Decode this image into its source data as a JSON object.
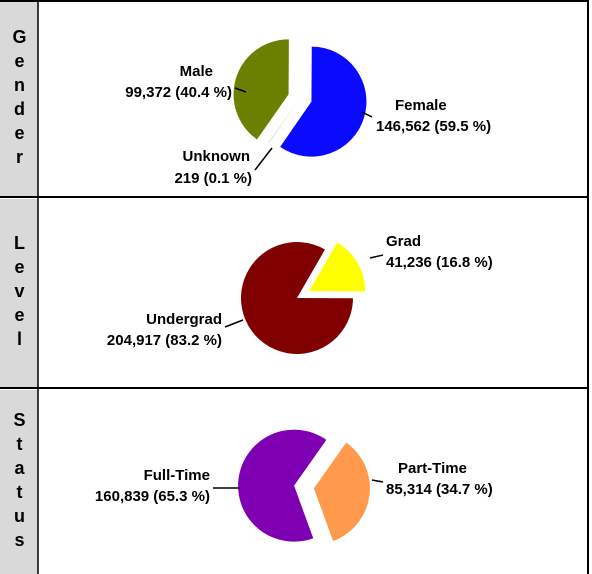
{
  "chart_data": [
    {
      "type": "pie",
      "title": "Gender",
      "categories": [
        "Male",
        "Female",
        "Unknown"
      ],
      "values": [
        99372,
        146562,
        219
      ],
      "value_labels": [
        "99,372 (40.4 %)",
        "146,562 (59.5 %)",
        "219 (0.1 %)"
      ],
      "colors": [
        "#6b8000",
        "#0a0aff",
        "#9a9a9a"
      ]
    },
    {
      "type": "pie",
      "title": "Level",
      "categories": [
        "Grad",
        "Undergrad"
      ],
      "values": [
        41236,
        204917
      ],
      "value_labels": [
        "41,236 (16.8 %)",
        "204,917 (83.2 %)"
      ],
      "colors": [
        "#ffff00",
        "#800000"
      ]
    },
    {
      "type": "pie",
      "title": "Status",
      "categories": [
        "Full-Time",
        "Part-Time"
      ],
      "values": [
        160839,
        85314
      ],
      "value_labels": [
        "160,839 (65.3 %)",
        "85,314 (34.7 %)"
      ],
      "colors": [
        "#7f00b2",
        "#ff9a4d"
      ]
    }
  ]
}
